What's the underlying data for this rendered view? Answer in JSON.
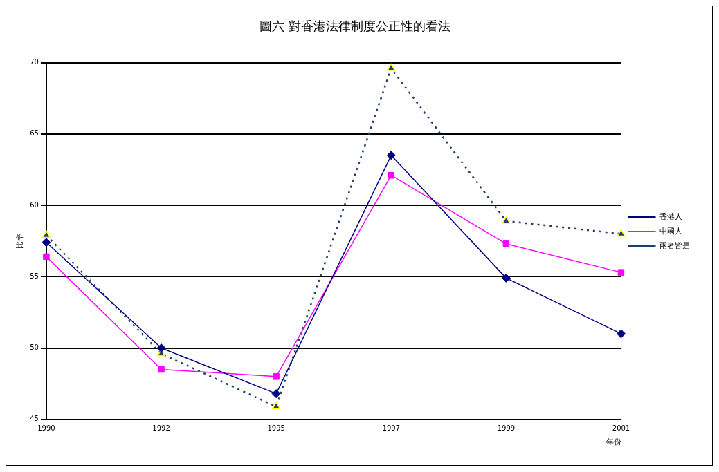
{
  "chart_data": {
    "type": "line",
    "title": "圖六 對香港法律制度公正性的看法",
    "xlabel": "年份",
    "ylabel": "比率",
    "categories": [
      "1990",
      "1992",
      "1995",
      "1997",
      "1999",
      "2001"
    ],
    "series": [
      {
        "name": "香港人",
        "color": "#000080",
        "values": [
          57.4,
          50.0,
          46.8,
          63.5,
          54.9,
          51.0
        ],
        "marker": "diamond",
        "line_style": "solid"
      },
      {
        "name": "中國人",
        "color": "#ff00ff",
        "values": [
          56.4,
          48.5,
          48.0,
          62.1,
          57.3,
          55.3
        ],
        "marker": "square",
        "line_style": "solid"
      },
      {
        "name": "兩者皆是",
        "color": "#1f3f6f",
        "values": [
          57.9,
          49.6,
          45.9,
          69.6,
          58.9,
          58.0
        ],
        "marker": "triangle",
        "line_style": "dotted"
      }
    ],
    "ylim": [
      45,
      70
    ],
    "yticks": [
      45,
      50,
      55,
      60,
      65,
      70
    ],
    "grid": "y",
    "legend": "right"
  }
}
